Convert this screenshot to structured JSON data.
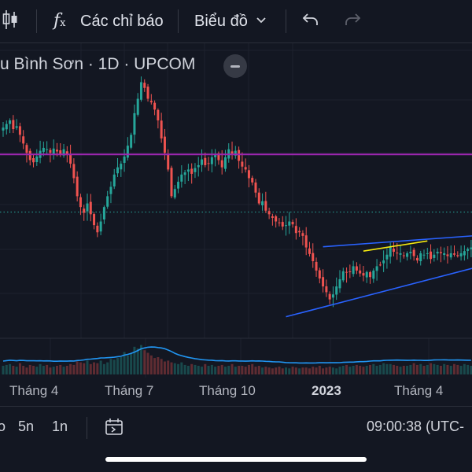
{
  "toolbar": {
    "chart_type_icon": "candlestick-icon",
    "indicators_icon": "function-fx-icon",
    "indicators_label": "Các chỉ báo",
    "charts_label": "Biểu đồ",
    "charts_icon": "chevron-down-icon",
    "undo_icon": "undo-icon",
    "redo_icon": "redo-icon"
  },
  "header": {
    "title": "u Bình Sơn · 1D · UPCOM",
    "collapse_icon": "minus-icon"
  },
  "time_axis": {
    "labels": [
      "Tháng 4",
      "Tháng 7",
      "Tháng 10",
      "2023",
      "Tháng 4"
    ]
  },
  "bottom_bar": {
    "partial_label": "o",
    "range_5d": "5n",
    "range_1d": "1n",
    "date_range_icon": "calendar-range-icon",
    "clock": "09:00:38 (UTC-"
  },
  "colors": {
    "background": "#131722",
    "up": "#26a69a",
    "down": "#ef5350",
    "horizontal_line": "#9c27b0",
    "trendline": "#2962ff",
    "highlight_line": "#f5e90f",
    "dotted_level": "#26a69a",
    "volume_ma": "#2196f3"
  },
  "price_closes": [
    56,
    56.5,
    57,
    55.8,
    56.2,
    55,
    53.8,
    52.5,
    51.5,
    51.2,
    52,
    52.8,
    53.2,
    53,
    52.5,
    53.1,
    52.7,
    52.3,
    53,
    52.2,
    51,
    49,
    46.5,
    45,
    44.2,
    45.5,
    44,
    42.5,
    41.5,
    43,
    45,
    46.5,
    47.8,
    49.5,
    50.5,
    51,
    52,
    53.5,
    55,
    58,
    60,
    62.3,
    61.5,
    60,
    59.5,
    58.5,
    57,
    54.5,
    52.5,
    50.2,
    46.5,
    47.5,
    48.5,
    49.5,
    49.8,
    50.2,
    49.6,
    50.4,
    50.8,
    51.6,
    50.8,
    51,
    51.9,
    52.3,
    51.5,
    50.5,
    51.9,
    53,
    52.4,
    52.8,
    51.4,
    50.6,
    50.2,
    49,
    48.4,
    47,
    45.5,
    45.8,
    44.5,
    44,
    43.5,
    43,
    42.8,
    42.3,
    42.5,
    43,
    42.6,
    41.4,
    41.5,
    41,
    39.4,
    38.5,
    37.5,
    36.2,
    35.1,
    34,
    33.2,
    32.2,
    32.9,
    34,
    35,
    36.1,
    35.9,
    36,
    36.8,
    36.2,
    35.8,
    35.5,
    36,
    35.3,
    36.2,
    36.8,
    37,
    37.6,
    38.4,
    39.5,
    38.8,
    38.6,
    38.6,
    38.2,
    38.6,
    38.8,
    38.2,
    37.6,
    38.6,
    38.4,
    38.6,
    37.8,
    38.4,
    38.8,
    38.6,
    38.6,
    38.2,
    38.6,
    38.4,
    38.2,
    38.6,
    38.9,
    39.2,
    39.4
  ],
  "volume": [
    1.0,
    1.1,
    1.2,
    1.0,
    0.9,
    1.3,
    1.0,
    0.8,
    1.1,
    1.0,
    0.9,
    1.2,
    1.0,
    1.1,
    0.8,
    0.9,
    1.0,
    1.1,
    0.9,
    1.0,
    1.2,
    1.1,
    1.5,
    1.4,
    1.3,
    1.6,
    1.2,
    1.4,
    1.3,
    1.6,
    1.2,
    1.4,
    1.8,
    1.7,
    1.9,
    2.0,
    2.6,
    2.2,
    2.4,
    3.2,
    3.0,
    3.4,
    2.8,
    2.5,
    2.2,
    1.9,
    2.0,
    1.8,
    1.5,
    1.6,
    1.4,
    1.3,
    1.2,
    1.4,
    1.1,
    1.0,
    1.2,
    1.1,
    1.0,
    0.9,
    1.2,
    1.0,
    1.1,
    0.9,
    1.0,
    1.1,
    0.9,
    1.0,
    1.2,
    0.9,
    1.0,
    1.0,
    0.9,
    1.1,
    1.2,
    0.9,
    1.0,
    0.8,
    0.9,
    0.8,
    0.7,
    0.8,
    0.9,
    0.7,
    0.8,
    0.7,
    0.9,
    0.8,
    0.7,
    0.8,
    0.8,
    0.7,
    0.9,
    0.8,
    1.0,
    0.7,
    0.8,
    0.9,
    0.8,
    0.7,
    0.9,
    1.0,
    1.1,
    0.9,
    1.0,
    1.1,
    1.0,
    0.9,
    1.0,
    1.1,
    1.2,
    1.0,
    1.1,
    1.3,
    1.2,
    1.2,
    1.1,
    1.0,
    0.9,
    1.0,
    1.0,
    1.1,
    1.3,
    1.1,
    1.2,
    1.0,
    1.1,
    1.3,
    1.2,
    1.1,
    1.0,
    1.2,
    1.1,
    1.0,
    1.2,
    1.1,
    1.0,
    1.2,
    1.1,
    1.0
  ],
  "levels": {
    "horizontal_price": 52.3,
    "dotted_price": 44.3
  },
  "trendlines": [
    {
      "role": "channel-lower",
      "x1": 84,
      "y1": 29.8,
      "x2": 149,
      "y2": 36.5
    },
    {
      "role": "channel-top-flat",
      "x1": 95,
      "y1": 39.5,
      "x2": 149,
      "y2": 41
    },
    {
      "role": "yellow-segment",
      "x1": 107,
      "y1": 38.9,
      "x2": 126,
      "y2": 40.3
    }
  ]
}
